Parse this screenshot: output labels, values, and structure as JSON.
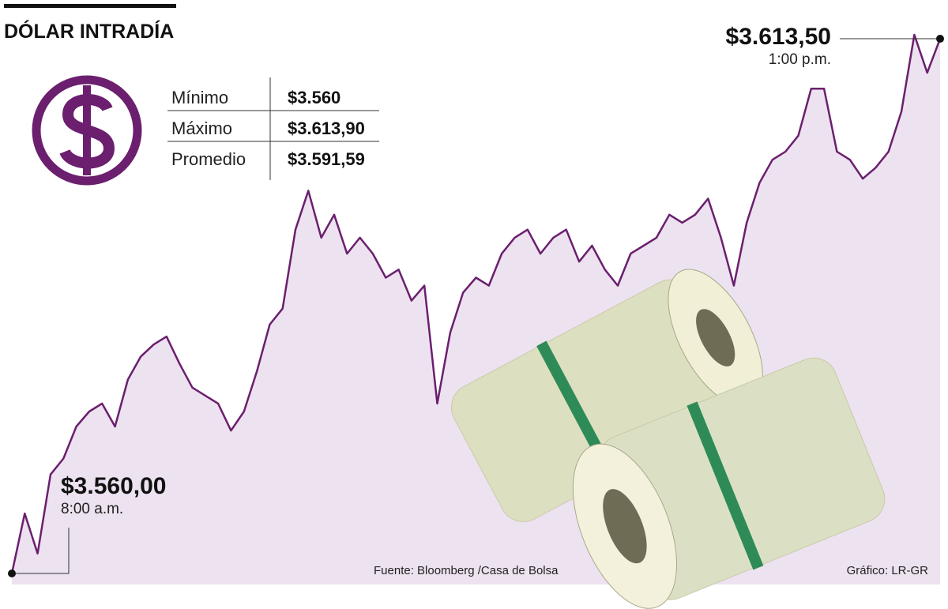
{
  "chart_data": {
    "type": "area",
    "title": "DÓLAR INTRADÍA",
    "values": [
      3560,
      3566,
      3562,
      3569.9,
      3571.5,
      3574.7,
      3576.2,
      3577,
      3574.7,
      3579.4,
      3581.7,
      3582.9,
      3583.7,
      3581,
      3578.6,
      3577.8,
      3577,
      3574.3,
      3576.2,
      3580.2,
      3584.9,
      3586.5,
      3594.4,
      3598.3,
      3593.6,
      3595.9,
      3592,
      3593.6,
      3592,
      3589.6,
      3590.4,
      3587.3,
      3588.8,
      3577,
      3584.1,
      3588.1,
      3589.6,
      3588.8,
      3592,
      3593.6,
      3594.4,
      3592,
      3593.6,
      3594.4,
      3591.2,
      3592.8,
      3590.4,
      3588.8,
      3592,
      3592.8,
      3593.6,
      3595.9,
      3595.1,
      3595.9,
      3597.5,
      3593.6,
      3588.8,
      3595.1,
      3599.1,
      3601.4,
      3602.2,
      3603.8,
      3608.5,
      3608.5,
      3602.2,
      3601.4,
      3599.5,
      3600.6,
      3602.2,
      3606.2,
      3613.9,
      3610.1,
      3613.5
    ],
    "color": "#6b1f6e",
    "fill": "#ede2ef",
    "annotations": [
      {
        "text": "$3.560,00",
        "note": "8:00 a.m."
      },
      {
        "text": "$3.613,50",
        "note": "1:00 p.m."
      }
    ],
    "stats": [
      {
        "label": "Mínimo",
        "value": "$3.560"
      },
      {
        "label": "Máximo",
        "value": "$3.613,90"
      },
      {
        "label": "Promedio",
        "value": "$3.591,59"
      }
    ],
    "source": "Fuente: Bloomberg /Casa de Bolsa",
    "credit": "Gráfico: LR-GR"
  }
}
